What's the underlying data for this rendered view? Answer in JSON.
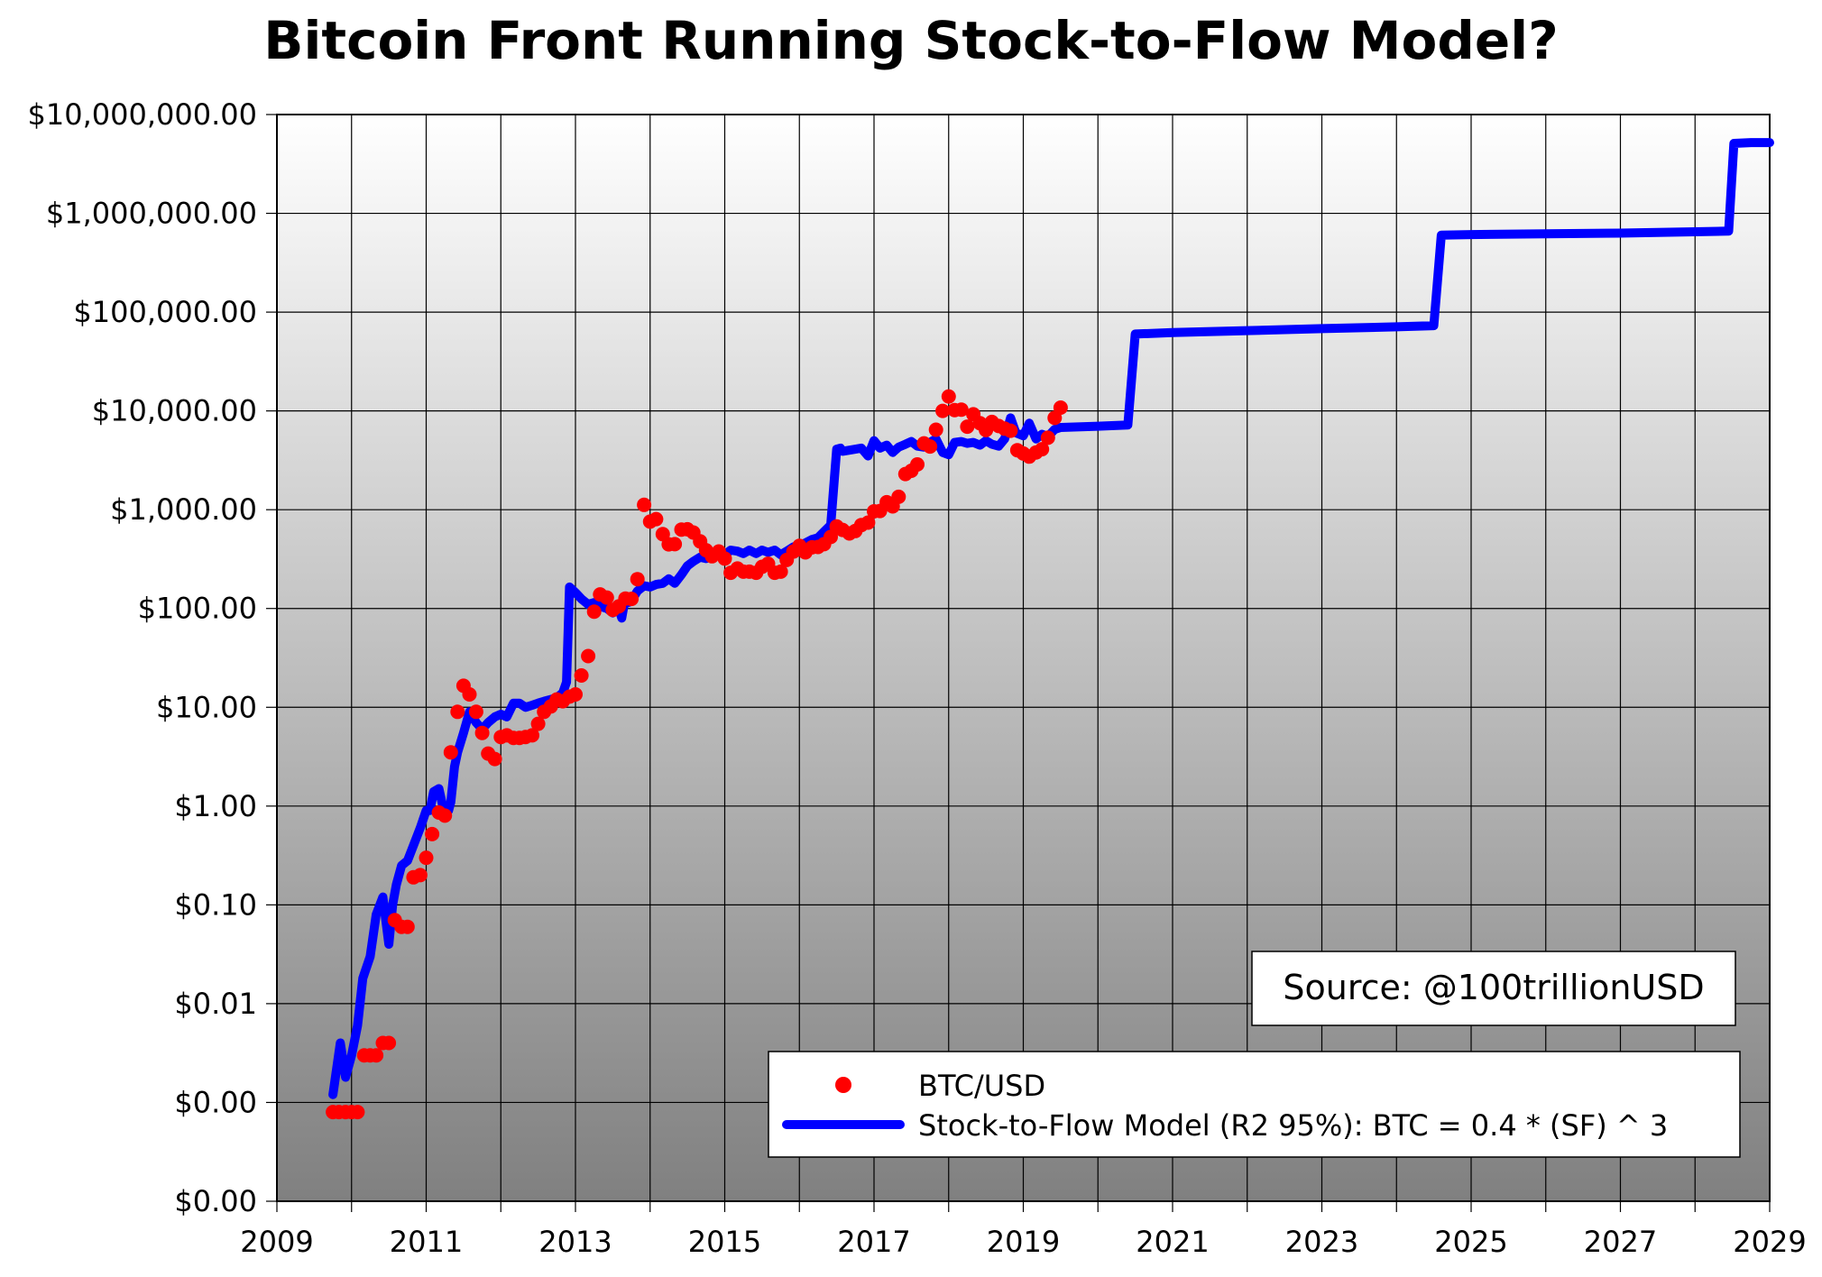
{
  "chart_data": {
    "type": "line",
    "title": "Bitcoin Front Running Stock-to-Flow Model?",
    "xlabel": "",
    "ylabel": "",
    "x_ticks": [
      "2009",
      "2011",
      "2013",
      "2015",
      "2017",
      "2019",
      "2021",
      "2023",
      "2025",
      "2027",
      "2029"
    ],
    "xlim": [
      2009,
      2029
    ],
    "y_scale": "log",
    "ylim": [
      0.0001,
      10000000
    ],
    "y_ticks": [
      {
        "value": 0.0001,
        "label": "$0.00"
      },
      {
        "value": 0.001,
        "label": "$0.00"
      },
      {
        "value": 0.01,
        "label": "$0.01"
      },
      {
        "value": 0.1,
        "label": "$0.10"
      },
      {
        "value": 1,
        "label": "$1.00"
      },
      {
        "value": 10,
        "label": "$10.00"
      },
      {
        "value": 100,
        "label": "$100.00"
      },
      {
        "value": 1000,
        "label": "$1,000.00"
      },
      {
        "value": 10000,
        "label": "$10,000.00"
      },
      {
        "value": 100000,
        "label": "$100,000.00"
      },
      {
        "value": 1000000,
        "label": "$1,000,000.00"
      },
      {
        "value": 10000000,
        "label": "$10,000,000.00"
      }
    ],
    "grid": true,
    "legend_position": "bottom-right",
    "annotation": "Source: @100trillionUSD",
    "colors": {
      "btc": "#ff0000",
      "model": "#0000ff"
    },
    "series": [
      {
        "name": "BTC/USD",
        "type": "scatter",
        "x": [
          2009.75,
          2009.83,
          2009.92,
          2010.0,
          2010.08,
          2010.17,
          2010.25,
          2010.33,
          2010.42,
          2010.5,
          2010.58,
          2010.67,
          2010.75,
          2010.83,
          2010.92,
          2011.0,
          2011.08,
          2011.17,
          2011.25,
          2011.33,
          2011.42,
          2011.5,
          2011.58,
          2011.67,
          2011.75,
          2011.83,
          2011.92,
          2012.0,
          2012.08,
          2012.17,
          2012.25,
          2012.33,
          2012.42,
          2012.5,
          2012.58,
          2012.67,
          2012.75,
          2012.83,
          2012.92,
          2013.0,
          2013.08,
          2013.17,
          2013.25,
          2013.33,
          2013.42,
          2013.5,
          2013.58,
          2013.67,
          2013.75,
          2013.83,
          2013.92,
          2014.0,
          2014.08,
          2014.17,
          2014.25,
          2014.33,
          2014.42,
          2014.5,
          2014.58,
          2014.67,
          2014.75,
          2014.83,
          2014.92,
          2015.0,
          2015.08,
          2015.17,
          2015.25,
          2015.33,
          2015.42,
          2015.5,
          2015.58,
          2015.67,
          2015.75,
          2015.83,
          2015.92,
          2016.0,
          2016.08,
          2016.17,
          2016.25,
          2016.33,
          2016.42,
          2016.5,
          2016.58,
          2016.67,
          2016.75,
          2016.83,
          2016.92,
          2017.0,
          2017.08,
          2017.17,
          2017.25,
          2017.33,
          2017.42,
          2017.5,
          2017.58,
          2017.67,
          2017.75,
          2017.83,
          2017.92,
          2018.0,
          2018.08,
          2018.17,
          2018.25,
          2018.33,
          2018.42,
          2018.5,
          2018.58,
          2018.67,
          2018.75,
          2018.83,
          2018.92,
          2019.0,
          2019.08,
          2019.17,
          2019.25,
          2019.33,
          2019.42
        ],
        "y": [
          0.0008,
          0.0008,
          0.0008,
          0.0008,
          0.0008,
          0.003,
          0.003,
          0.003,
          0.004,
          0.004,
          0.07,
          0.06,
          0.06,
          0.19,
          0.2,
          0.3,
          0.52,
          0.86,
          0.8,
          3.5,
          9.0,
          16.5,
          13.5,
          9.0,
          5.5,
          3.4,
          3.0,
          5.0,
          5.2,
          4.9,
          4.9,
          5.0,
          5.2,
          6.8,
          9.0,
          10.2,
          12.0,
          11.5,
          12.8,
          13.5,
          21.0,
          33.0,
          93.0,
          139.0,
          129.0,
          97.0,
          105.0,
          126.0,
          125.0,
          198.0,
          1120.0,
          757.0,
          803.0,
          565.0,
          446.0,
          448.0,
          630.0,
          634.0,
          587.0,
          478.0,
          389.0,
          338.0,
          378.0,
          320.0,
          230.0,
          254.0,
          236.0,
          236.0,
          230.0,
          264.0,
          284.0,
          230.0,
          236.0,
          310.0,
          377.0,
          430.0,
          370.0,
          416.0,
          420.0,
          448.0,
          530.0,
          676.0,
          624.0,
          575.0,
          609.0,
          700.0,
          740.0,
          963.0,
          970.0,
          1190.0,
          1080.0,
          1350.0,
          2300.0,
          2480.0,
          2870.0,
          4700.0,
          4360.0,
          6450.0,
          10000.0,
          14000.0,
          10200.0,
          10300.0,
          6930.0,
          9240.0,
          7500.0,
          6400.0,
          7730.0,
          7030.0,
          6610.0,
          6300.0,
          4000.0,
          3700.0,
          3450.0,
          3800.0,
          4100.0,
          5350.0,
          8500.0
        ],
        "extra_points": [
          [
            2019.5,
            10800.0
          ]
        ]
      },
      {
        "name": "Stock-to-Flow Model (R2 95%): BTC = 0.4 * (SF) ^ 3",
        "type": "line",
        "x": [
          2009.75,
          2009.85,
          2009.92,
          2010.0,
          2010.08,
          2010.15,
          2010.25,
          2010.33,
          2010.42,
          2010.5,
          2010.55,
          2010.6,
          2010.67,
          2010.75,
          2010.83,
          2010.92,
          2011.0,
          2011.05,
          2011.1,
          2011.17,
          2011.25,
          2011.3,
          2011.33,
          2011.38,
          2011.42,
          2011.5,
          2011.58,
          2011.67,
          2011.75,
          2011.83,
          2011.92,
          2012.0,
          2012.08,
          2012.17,
          2012.25,
          2012.33,
          2012.42,
          2012.5,
          2012.58,
          2012.67,
          2012.75,
          2012.83,
          2012.88,
          2012.92,
          2013.0,
          2013.08,
          2013.17,
          2013.25,
          2013.33,
          2013.42,
          2013.5,
          2013.58,
          2013.62,
          2013.67,
          2013.71,
          2013.75,
          2013.83,
          2013.92,
          2014.0,
          2014.08,
          2014.17,
          2014.25,
          2014.33,
          2014.42,
          2014.5,
          2014.58,
          2014.67,
          2014.75,
          2014.83,
          2014.92,
          2015.0,
          2015.08,
          2015.17,
          2015.25,
          2015.33,
          2015.42,
          2015.5,
          2015.58,
          2015.67,
          2015.75,
          2015.83,
          2015.92,
          2016.0,
          2016.08,
          2016.17,
          2016.25,
          2016.33,
          2016.42,
          2016.5,
          2016.55,
          2016.58,
          2016.67,
          2016.75,
          2016.83,
          2016.92,
          2017.0,
          2017.08,
          2017.17,
          2017.25,
          2017.33,
          2017.42,
          2017.5,
          2017.58,
          2017.67,
          2017.75,
          2017.83,
          2017.92,
          2018.0,
          2018.08,
          2018.17,
          2018.25,
          2018.33,
          2018.42,
          2018.5,
          2018.58,
          2018.67,
          2018.75,
          2018.83,
          2018.9,
          2019.0,
          2019.08,
          2019.17,
          2019.25,
          2019.33,
          2019.42,
          2019.5,
          2020.0,
          2020.4,
          2020.5,
          2021.0,
          2022.0,
          2023.0,
          2024.0,
          2024.5,
          2024.6,
          2025.0,
          2026.0,
          2027.0,
          2028.0,
          2028.45,
          2028.52,
          2028.75,
          2029.0
        ],
        "y": [
          0.0012,
          0.004,
          0.0018,
          0.003,
          0.006,
          0.018,
          0.03,
          0.08,
          0.12,
          0.04,
          0.1,
          0.16,
          0.25,
          0.28,
          0.4,
          0.6,
          0.9,
          0.9,
          1.4,
          1.5,
          0.8,
          0.9,
          1.1,
          2.5,
          3.5,
          5.5,
          9.0,
          7.0,
          6.0,
          7.0,
          8.0,
          8.5,
          8.0,
          11.0,
          11.0,
          10.0,
          10.5,
          11.0,
          11.5,
          12.0,
          12.5,
          14.0,
          18.0,
          165.0,
          145.0,
          125.0,
          110.0,
          115.0,
          105.0,
          100.0,
          90.0,
          100.0,
          80.0,
          130.0,
          115.0,
          120.0,
          150.0,
          170.0,
          165.0,
          175.0,
          180.0,
          200.0,
          180.0,
          220.0,
          270.0,
          300.0,
          330.0,
          320.0,
          360.0,
          380.0,
          350.0,
          390.0,
          380.0,
          360.0,
          390.0,
          360.0,
          390.0,
          370.0,
          390.0,
          350.0,
          380.0,
          420.0,
          440.0,
          460.0,
          500.0,
          520.0,
          600.0,
          700.0,
          4100.0,
          4200.0,
          3900.0,
          4000.0,
          4100.0,
          4200.0,
          3500.0,
          5000.0,
          4200.0,
          4500.0,
          3800.0,
          4300.0,
          4600.0,
          4900.0,
          4400.0,
          4300.0,
          4800.0,
          5200.0,
          3800.0,
          3600.0,
          4800.0,
          4900.0,
          4700.0,
          4800.0,
          4500.0,
          5000.0,
          4600.0,
          4400.0,
          5200.0,
          8500.0,
          6000.0,
          5600.0,
          7500.0,
          5200.0,
          5800.0,
          5500.0,
          6500.0,
          6800.0,
          7000.0,
          7200.0,
          60000.0,
          62000.0,
          65000.0,
          68000.0,
          71000.0,
          73000.0,
          600000.0,
          610000.0,
          620000.0,
          630000.0,
          650000.0,
          660000.0,
          5100000.0,
          5200000.0,
          5200000.0
        ]
      }
    ]
  }
}
